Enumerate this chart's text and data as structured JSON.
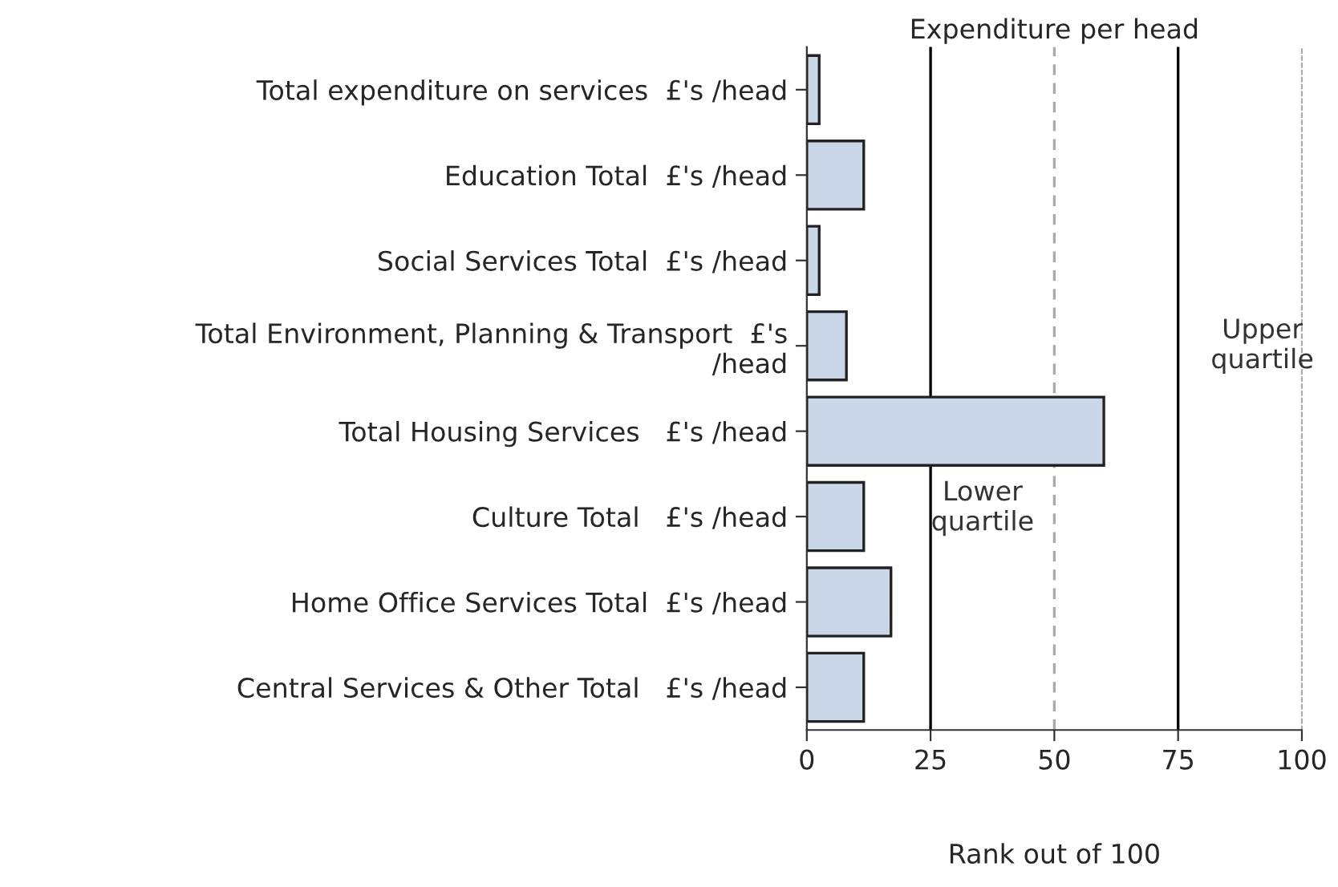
{
  "chart_data": {
    "type": "bar",
    "orientation": "horizontal",
    "title": "Expenditure per head",
    "xlabel": "Rank out of 100",
    "categories": [
      "Total expenditure on services  £'s /head",
      "Education Total  £'s /head",
      "Social Services Total  £'s /head",
      "Total Environment, Planning & Transport  £'s\n/head",
      "Total Housing Services   £'s /head",
      "Culture Total   £'s /head",
      "Home Office Services Total  £'s /head",
      "Central Services & Other Total   £'s /head"
    ],
    "values": [
      2.5,
      11.5,
      2.5,
      8,
      60,
      11.5,
      17,
      11.5
    ],
    "color": "#c9d7e8",
    "xlim": [
      0,
      100
    ],
    "xticks": [
      0,
      25,
      50,
      75,
      100
    ],
    "ref_lines": [
      {
        "axis": "x",
        "value": 25,
        "label": "Lower\nquartile",
        "color": "#000000",
        "line_style": "solid"
      },
      {
        "axis": "x",
        "value": 50,
        "label": null,
        "color": "#aaaaaa",
        "line_style": "dashed"
      },
      {
        "axis": "x",
        "value": 75,
        "label": "Upper\nquartile",
        "color": "#000000",
        "line_style": "solid"
      }
    ],
    "grid": false,
    "legend": false
  }
}
